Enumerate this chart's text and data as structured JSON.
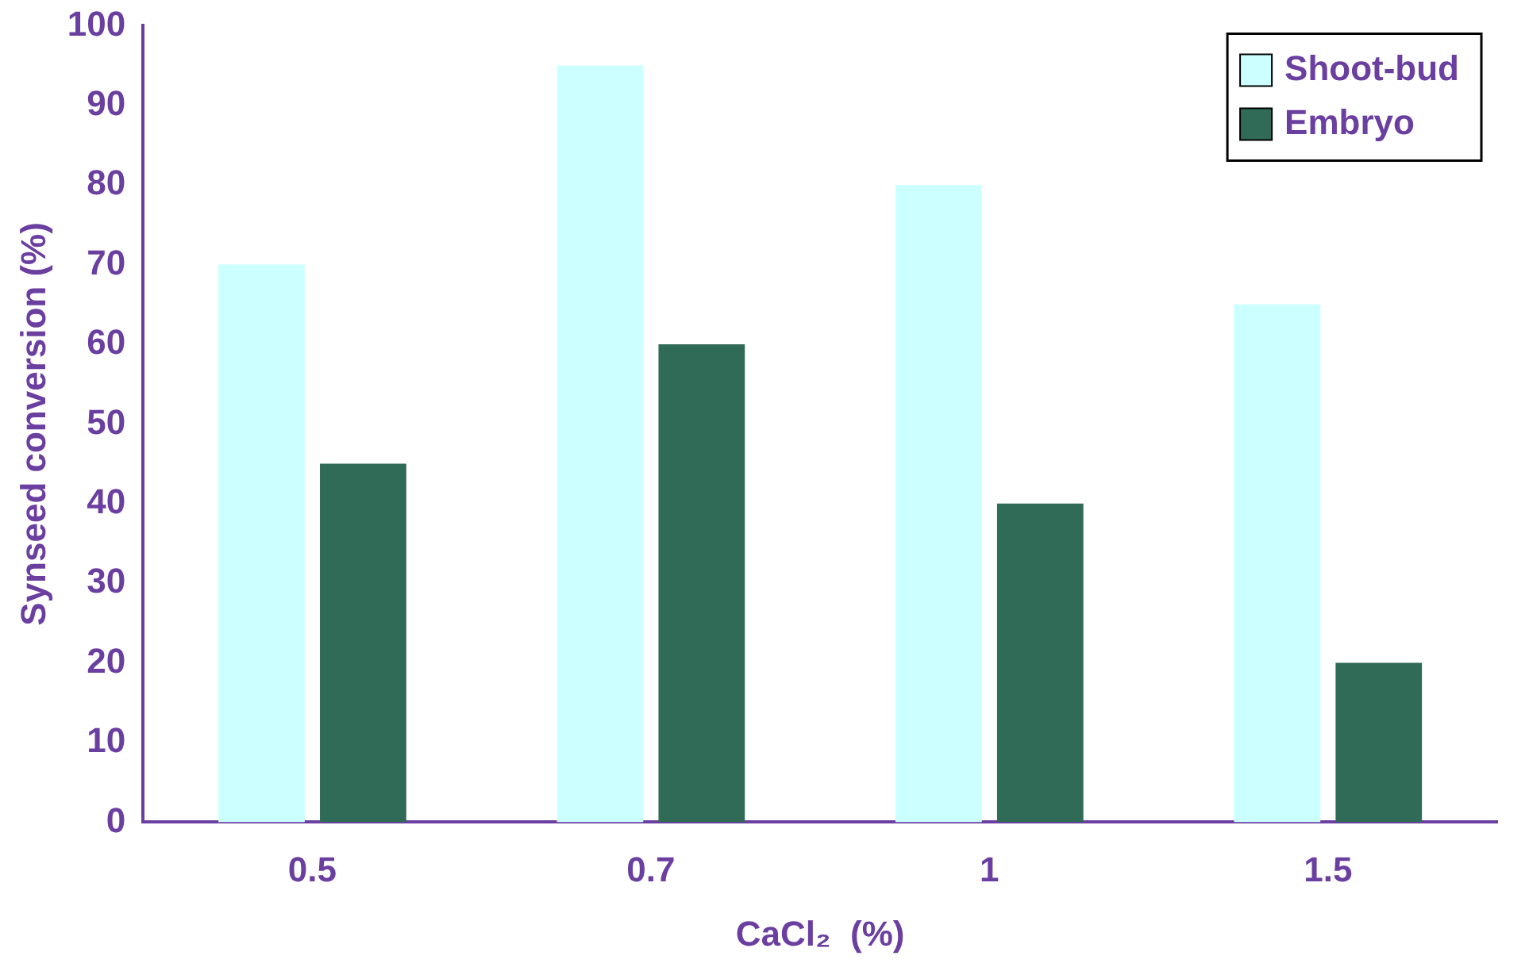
{
  "chart_data": {
    "type": "bar",
    "xlabel": "CaCl₂  (%)",
    "ylabel": "Synseed conversion (%)",
    "categories": [
      "0.5",
      "0.7",
      "1",
      "1.5"
    ],
    "series": [
      {
        "name": "Shoot-bud",
        "color": "#ccffff",
        "values": [
          70,
          95,
          80,
          65
        ]
      },
      {
        "name": "Embryo",
        "color": "#2f6b57",
        "values": [
          45,
          60,
          40,
          20
        ]
      }
    ],
    "ylim": [
      0,
      100
    ],
    "yticks": [
      0,
      10,
      20,
      30,
      40,
      50,
      60,
      70,
      80,
      90,
      100
    ],
    "grid": false,
    "legend": "top right"
  }
}
